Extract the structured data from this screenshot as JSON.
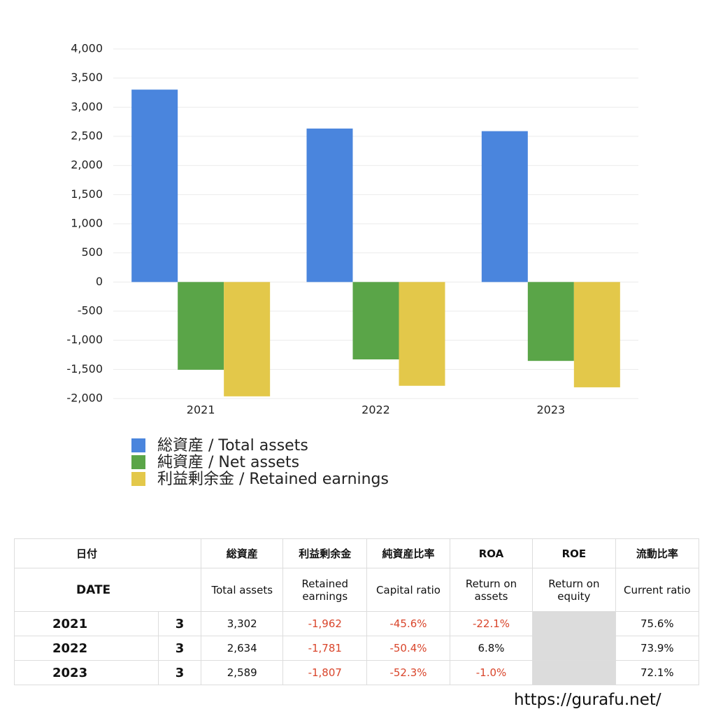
{
  "chart_data": {
    "type": "bar",
    "categories": [
      "2021",
      "2022",
      "2023"
    ],
    "series": [
      {
        "name": "総資産 / Total assets",
        "color": "#4a85dd",
        "values": [
          3302,
          2634,
          2589
        ]
      },
      {
        "name": "純資産 / Net assets",
        "color": "#5aa548",
        "values": [
          -1506,
          -1328,
          -1354
        ]
      },
      {
        "name": "利益剰余金 / Retained earnings",
        "color": "#e3c84a",
        "values": [
          -1962,
          -1781,
          -1807
        ]
      }
    ],
    "ylim": [
      -2000,
      4000
    ],
    "yticks": [
      {
        "value": -2000,
        "label": "-2,000"
      },
      {
        "value": -1500,
        "label": "-1,500"
      },
      {
        "value": -1000,
        "label": "-1,000"
      },
      -500,
      0,
      500,
      {
        "value": 1000,
        "label": "1,000"
      },
      {
        "value": 1500,
        "label": "1,500"
      },
      {
        "value": 2000,
        "label": "2,000"
      },
      {
        "value": 2500,
        "label": "2,500"
      },
      {
        "value": 3000,
        "label": "3,000"
      },
      {
        "value": 3500,
        "label": "3,500"
      },
      {
        "value": 4000,
        "label": "4,000"
      }
    ],
    "grid": true
  },
  "table": {
    "header_row1": [
      "日付",
      "総資産",
      "利益剰余金",
      "純資産比率",
      "ROA",
      "ROE",
      "流動比率"
    ],
    "header_row2": [
      "DATE",
      "Total assets",
      "Retained earnings",
      "Capital ratio",
      "Return on assets",
      "Return on equity",
      "Current ratio"
    ],
    "rows": [
      [
        "2021",
        "3",
        "3,302",
        "-1,962",
        "-45.6%",
        "-22.1%",
        null,
        "75.6%"
      ],
      [
        "2022",
        "3",
        "2,634",
        "-1,781",
        "-50.4%",
        "6.8%",
        null,
        "73.9%"
      ],
      [
        "2023",
        "3",
        "2,589",
        "-1,807",
        "-52.3%",
        "-1.0%",
        null,
        "72.1%"
      ]
    ]
  },
  "footer": {
    "url": "https://gurafu.net/"
  }
}
